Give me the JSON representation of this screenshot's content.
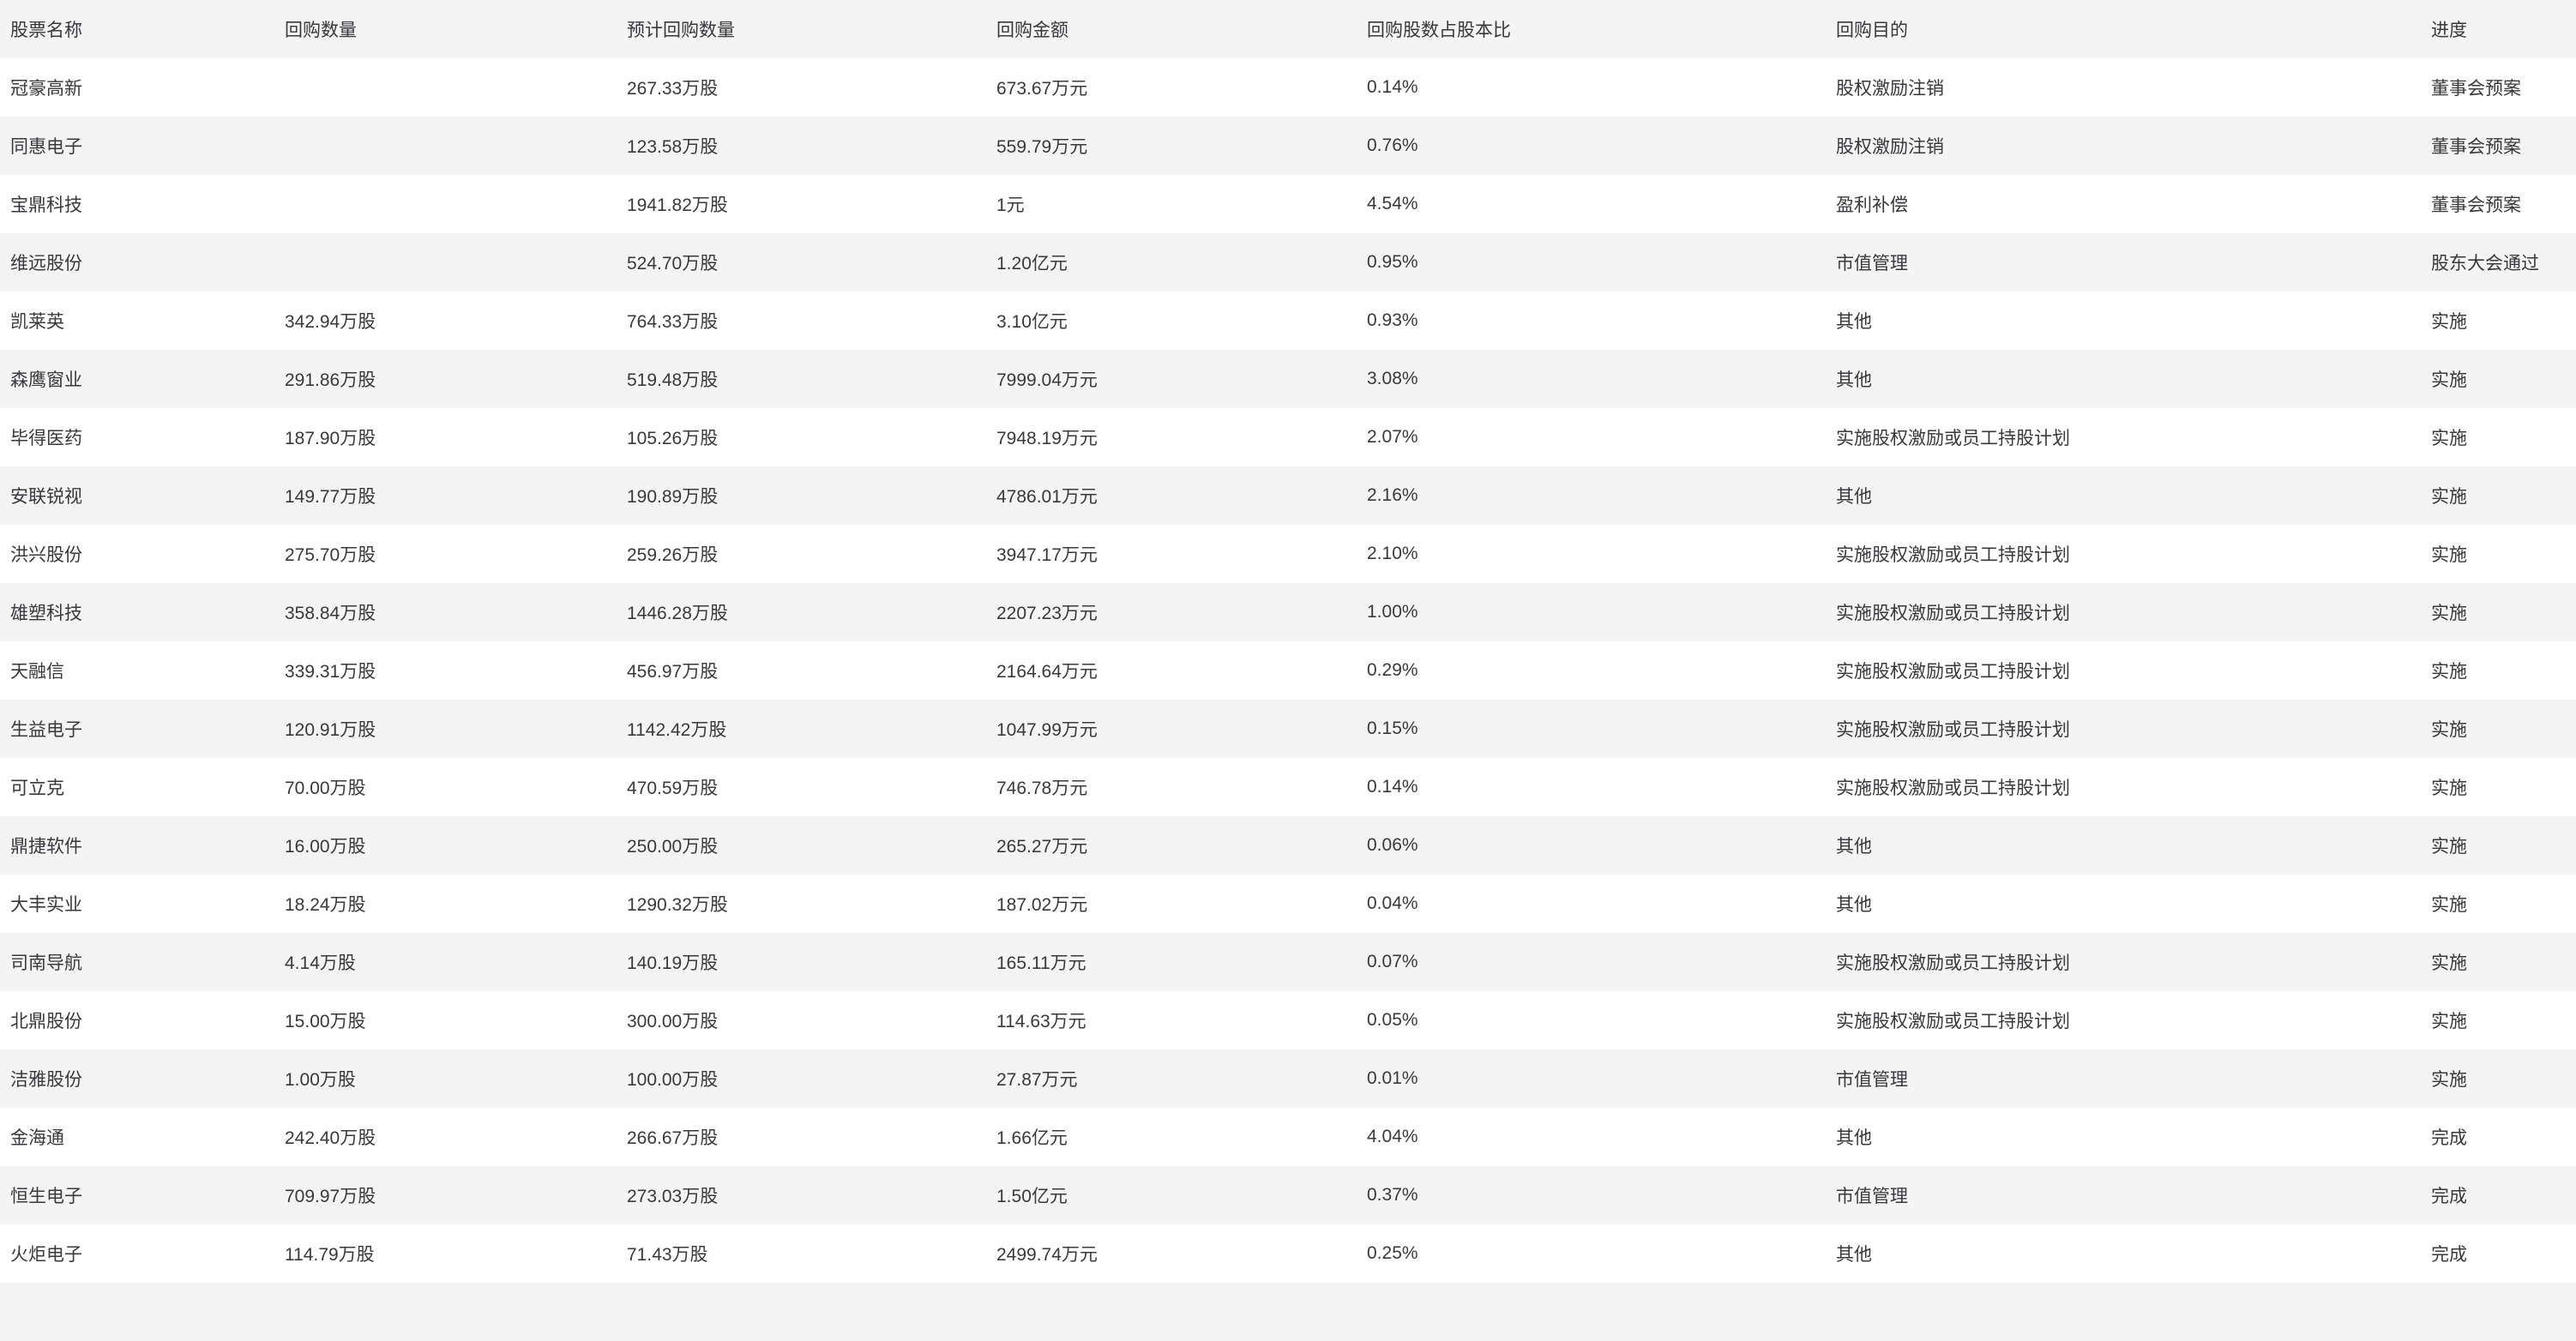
{
  "colors": {
    "link_underline": "#3c8fb4",
    "alt_row_bg": "#f4f4f5",
    "text": "#37393c"
  },
  "table": {
    "columns": [
      "股票名称",
      "回购数量",
      "预计回购数量",
      "回购金额",
      "回购股数占股本比",
      "回购目的",
      "进度"
    ],
    "rows": [
      {
        "name": "冠豪高新",
        "qty": "",
        "est_qty": "267.33万股",
        "amount": "673.67万元",
        "pct": "0.14%",
        "purpose": "股权激励注销",
        "progress": "董事会预案"
      },
      {
        "name": "同惠电子",
        "qty": "",
        "est_qty": "123.58万股",
        "amount": "559.79万元",
        "pct": "0.76%",
        "purpose": "股权激励注销",
        "progress": "董事会预案"
      },
      {
        "name": "宝鼎科技",
        "qty": "",
        "est_qty": "1941.82万股",
        "amount": "1元",
        "pct": "4.54%",
        "purpose": "盈利补偿",
        "progress": "董事会预案"
      },
      {
        "name": "维远股份",
        "qty": "",
        "est_qty": "524.70万股",
        "amount": "1.20亿元",
        "pct": "0.95%",
        "purpose": "市值管理",
        "progress": "股东大会通过"
      },
      {
        "name": "凯莱英",
        "qty": "342.94万股",
        "est_qty": "764.33万股",
        "amount": "3.10亿元",
        "pct": "0.93%",
        "purpose": "其他",
        "progress": "实施"
      },
      {
        "name": "森鹰窗业",
        "qty": "291.86万股",
        "est_qty": "519.48万股",
        "amount": "7999.04万元",
        "pct": "3.08%",
        "purpose": "其他",
        "progress": "实施"
      },
      {
        "name": "毕得医药",
        "qty": "187.90万股",
        "est_qty": "105.26万股",
        "amount": "7948.19万元",
        "pct": "2.07%",
        "purpose": "实施股权激励或员工持股计划",
        "progress": "实施"
      },
      {
        "name": "安联锐视",
        "qty": "149.77万股",
        "est_qty": "190.89万股",
        "amount": "4786.01万元",
        "pct": "2.16%",
        "purpose": "其他",
        "progress": "实施"
      },
      {
        "name": "洪兴股份",
        "qty": "275.70万股",
        "est_qty": "259.26万股",
        "amount": "3947.17万元",
        "pct": "2.10%",
        "purpose": "实施股权激励或员工持股计划",
        "progress": "实施"
      },
      {
        "name": "雄塑科技",
        "qty": "358.84万股",
        "est_qty": "1446.28万股",
        "amount": "2207.23万元",
        "pct": "1.00%",
        "purpose": "实施股权激励或员工持股计划",
        "progress": "实施"
      },
      {
        "name": "天融信",
        "qty": "339.31万股",
        "est_qty": "456.97万股",
        "amount": "2164.64万元",
        "pct": "0.29%",
        "purpose": "实施股权激励或员工持股计划",
        "progress": "实施"
      },
      {
        "name": "生益电子",
        "qty": "120.91万股",
        "est_qty": "1142.42万股",
        "amount": "1047.99万元",
        "pct": "0.15%",
        "purpose": "实施股权激励或员工持股计划",
        "progress": "实施"
      },
      {
        "name": "可立克",
        "qty": "70.00万股",
        "est_qty": "470.59万股",
        "amount": "746.78万元",
        "pct": "0.14%",
        "purpose": "实施股权激励或员工持股计划",
        "progress": "实施"
      },
      {
        "name": "鼎捷软件",
        "qty": "16.00万股",
        "est_qty": "250.00万股",
        "amount": "265.27万元",
        "pct": "0.06%",
        "purpose": "其他",
        "progress": "实施"
      },
      {
        "name": "大丰实业",
        "qty": "18.24万股",
        "est_qty": "1290.32万股",
        "amount": "187.02万元",
        "pct": "0.04%",
        "purpose": "其他",
        "progress": "实施"
      },
      {
        "name": "司南导航",
        "qty": "4.14万股",
        "est_qty": "140.19万股",
        "amount": "165.11万元",
        "pct": "0.07%",
        "purpose": "实施股权激励或员工持股计划",
        "progress": "实施"
      },
      {
        "name": "北鼎股份",
        "qty": "15.00万股",
        "est_qty": "300.00万股",
        "amount": "114.63万元",
        "pct": "0.05%",
        "purpose": "实施股权激励或员工持股计划",
        "progress": "实施"
      },
      {
        "name": "洁雅股份",
        "qty": "1.00万股",
        "est_qty": "100.00万股",
        "amount": "27.87万元",
        "pct": "0.01%",
        "purpose": "市值管理",
        "progress": "实施"
      },
      {
        "name": "金海通",
        "qty": "242.40万股",
        "est_qty": "266.67万股",
        "amount": "1.66亿元",
        "pct": "4.04%",
        "purpose": "其他",
        "progress": "完成"
      },
      {
        "name": "恒生电子",
        "qty": "709.97万股",
        "est_qty": "273.03万股",
        "amount": "1.50亿元",
        "pct": "0.37%",
        "purpose": "市值管理",
        "progress": "完成"
      },
      {
        "name": "火炬电子",
        "qty": "114.79万股",
        "est_qty": "71.43万股",
        "amount": "2499.74万元",
        "pct": "0.25%",
        "purpose": "其他",
        "progress": "完成"
      }
    ]
  }
}
